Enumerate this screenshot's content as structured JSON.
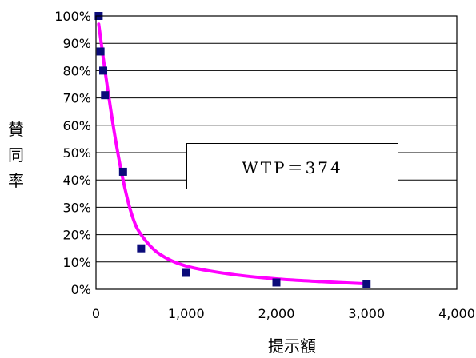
{
  "chart_data": {
    "type": "scatter",
    "xlabel": "提示額",
    "ylabel": "賛同率",
    "xlim": [
      0,
      4000
    ],
    "ylim": [
      0,
      100
    ],
    "x_ticks": [
      "0",
      "1,000",
      "2,000",
      "3,000",
      "4,000"
    ],
    "y_ticks": [
      "0%",
      "10%",
      "20%",
      "30%",
      "40%",
      "50%",
      "60%",
      "70%",
      "80%",
      "90%",
      "100%"
    ],
    "grid": "horizontal",
    "series": [
      {
        "kind": "points",
        "color": "#0b0b7a",
        "points": [
          {
            "x": 30,
            "y": 100
          },
          {
            "x": 50,
            "y": 87
          },
          {
            "x": 80,
            "y": 80
          },
          {
            "x": 100,
            "y": 71
          },
          {
            "x": 300,
            "y": 43
          },
          {
            "x": 500,
            "y": 15
          },
          {
            "x": 1000,
            "y": 6
          },
          {
            "x": 2000,
            "y": 2.5
          },
          {
            "x": 3000,
            "y": 2
          }
        ]
      },
      {
        "kind": "fitted-curve",
        "color": "#ff00ff",
        "points": [
          {
            "x": 30,
            "y": 97
          },
          {
            "x": 100,
            "y": 80
          },
          {
            "x": 200,
            "y": 58
          },
          {
            "x": 300,
            "y": 40
          },
          {
            "x": 400,
            "y": 27
          },
          {
            "x": 500,
            "y": 20
          },
          {
            "x": 700,
            "y": 13
          },
          {
            "x": 1000,
            "y": 8.5
          },
          {
            "x": 1500,
            "y": 5.5
          },
          {
            "x": 2000,
            "y": 3.8
          },
          {
            "x": 2500,
            "y": 2.8
          },
          {
            "x": 3000,
            "y": 2
          }
        ]
      }
    ],
    "annotation": "WTP＝374"
  }
}
